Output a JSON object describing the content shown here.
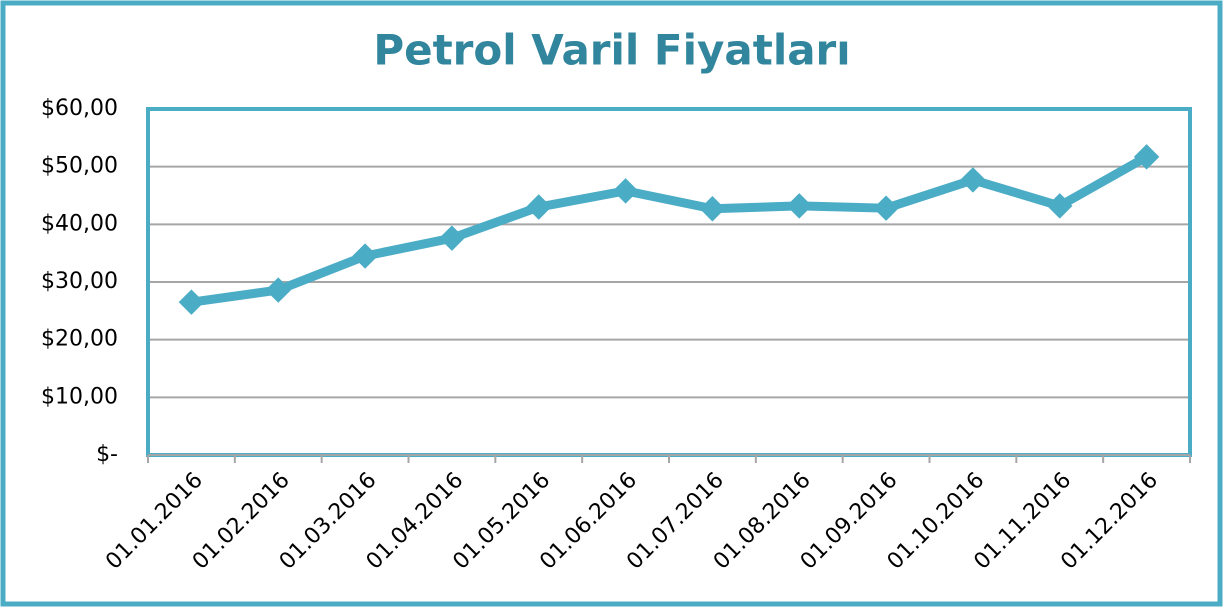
{
  "chart_data": {
    "type": "line",
    "title": "Petrol Varil Fiyatları",
    "categories": [
      "01.01.2016",
      "01.02.2016",
      "01.03.2016",
      "01.04.2016",
      "01.05.2016",
      "01.06.2016",
      "01.07.2016",
      "01.08.2016",
      "01.09.2016",
      "01.10.2016",
      "01.11.2016",
      "01.12.2016"
    ],
    "series": [
      {
        "name": "Petrol Varil Fiyatları",
        "color": "#4bacc6",
        "values": [
          26.5,
          28.6,
          34.5,
          37.6,
          43.0,
          45.8,
          42.7,
          43.2,
          42.8,
          47.7,
          43.2,
          51.7
        ]
      }
    ],
    "ylim": [
      0,
      60
    ],
    "yticks": [
      {
        "value": 0,
        "label": "$-"
      },
      {
        "value": 10,
        "label": "$10,00"
      },
      {
        "value": 20,
        "label": "$20,00"
      },
      {
        "value": 30,
        "label": "$30,00"
      },
      {
        "value": 40,
        "label": "$40,00"
      },
      {
        "value": 50,
        "label": "$50,00"
      },
      {
        "value": 60,
        "label": "$60,00"
      }
    ],
    "grid": true
  }
}
